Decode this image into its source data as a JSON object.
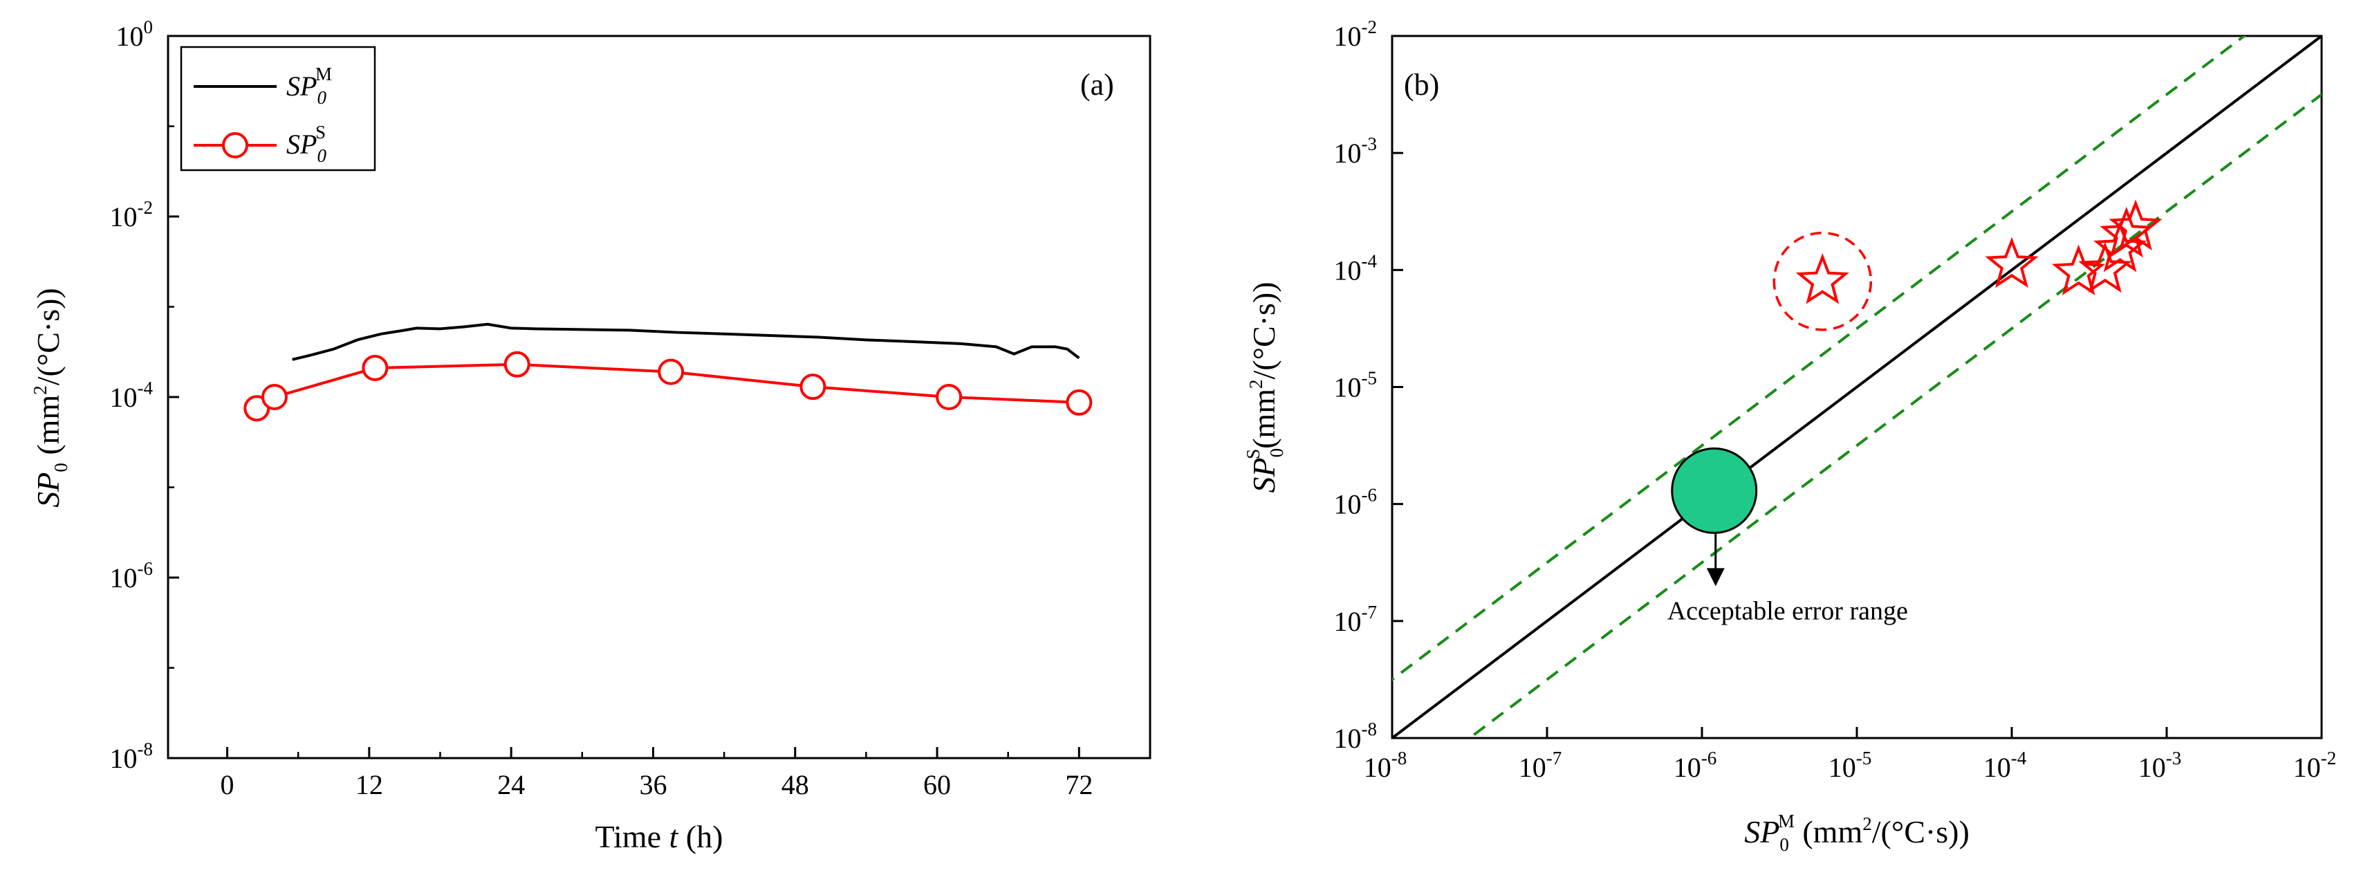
{
  "chart_data": [
    {
      "id": "a",
      "type": "line",
      "panel_label": "(a)",
      "x_ticks": [
        0,
        12,
        24,
        36,
        48,
        60,
        72
      ],
      "xlim": [
        -5,
        78
      ],
      "y_ticks": [
        {
          "base": "10",
          "exp": "-8",
          "value": 1e-08
        },
        {
          "base": "10",
          "exp": "-6",
          "value": 1e-06
        },
        {
          "base": "10",
          "exp": "-4",
          "value": 0.0001
        },
        {
          "base": "10",
          "exp": "-2",
          "value": 0.01
        },
        {
          "base": "10",
          "exp": "0",
          "value": 1
        }
      ],
      "ylim": [
        1e-08,
        1
      ],
      "yscale": "log",
      "xlabel": {
        "prefix": "Time ",
        "var": "t",
        "suffix": " (h)"
      },
      "ylabel": {
        "var": "SP",
        "sub": "0",
        "unit_a": " (mm",
        "unit_sup": "2",
        "unit_b": "/(°C·s))"
      },
      "legend": [
        {
          "sym": "SP",
          "sub": "0",
          "sup": "M",
          "style": "line"
        },
        {
          "sym": "SP",
          "sub": "0",
          "sup": "S",
          "style": "line-circle"
        }
      ],
      "series": [
        {
          "name": "SP0 M",
          "color": "#000000",
          "x": [
            5.5,
            7,
            9,
            11,
            13,
            15,
            16,
            18,
            20,
            22,
            24,
            26,
            30,
            34,
            38,
            42,
            46,
            50,
            54,
            58,
            62,
            65,
            66.5,
            68,
            70,
            71,
            72
          ],
          "y": [
            0.00026,
            0.00029,
            0.00034,
            0.00043,
            0.0005,
            0.00055,
            0.00058,
            0.00057,
            0.0006,
            0.00064,
            0.00058,
            0.00057,
            0.00056,
            0.00055,
            0.00052,
            0.0005,
            0.00048,
            0.00046,
            0.00043,
            0.00041,
            0.00039,
            0.00036,
            0.0003,
            0.00036,
            0.00036,
            0.00034,
            0.00027
          ]
        },
        {
          "name": "SP0 S",
          "color": "#ff0000",
          "marker": "circle",
          "x": [
            2.5,
            4.0,
            12.5,
            24.5,
            37.5,
            49.5,
            61.0,
            72.0
          ],
          "y": [
            7.5e-05,
            0.0001,
            0.00021,
            0.00023,
            0.00019,
            0.00013,
            0.0001,
            8.7e-05
          ]
        }
      ]
    },
    {
      "id": "b",
      "type": "scatter",
      "panel_label": "(b)",
      "xscale": "log",
      "yscale": "log",
      "xlim": [
        1e-08,
        0.01
      ],
      "ylim": [
        1e-08,
        0.01
      ],
      "x_ticks": [
        {
          "base": "10",
          "exp": "-8",
          "value": 1e-08
        },
        {
          "base": "10",
          "exp": "-7",
          "value": 1e-07
        },
        {
          "base": "10",
          "exp": "-6",
          "value": 1e-06
        },
        {
          "base": "10",
          "exp": "-5",
          "value": 1e-05
        },
        {
          "base": "10",
          "exp": "-4",
          "value": 0.0001
        },
        {
          "base": "10",
          "exp": "-3",
          "value": 0.001
        },
        {
          "base": "10",
          "exp": "-2",
          "value": 0.01
        }
      ],
      "y_ticks": [
        {
          "base": "10",
          "exp": "-8",
          "value": 1e-08
        },
        {
          "base": "10",
          "exp": "-7",
          "value": 1e-07
        },
        {
          "base": "10",
          "exp": "-6",
          "value": 1e-06
        },
        {
          "base": "10",
          "exp": "-5",
          "value": 1e-05
        },
        {
          "base": "10",
          "exp": "-4",
          "value": 0.0001
        },
        {
          "base": "10",
          "exp": "-3",
          "value": 0.001
        },
        {
          "base": "10",
          "exp": "-2",
          "value": 0.01
        }
      ],
      "xlabel": {
        "var": "SP",
        "sub": "0",
        "sup": "M",
        "unit_a": " (mm",
        "unit_sup": "2",
        "unit_b": "/(°C·s))"
      },
      "ylabel": {
        "var": "SP",
        "sub": "0",
        "sup": "S",
        "unit_a": "(mm",
        "unit_sup": "2",
        "unit_b": "/(°C·s))"
      },
      "reference_lines": [
        {
          "name": "1:1 line",
          "factor": 1,
          "color": "#000000",
          "dash": false
        },
        {
          "name": "upper error bound",
          "factor": 3.16,
          "color": "#1a8c1a",
          "dash": true
        },
        {
          "name": "lower error bound",
          "factor": 0.316,
          "color": "#1a8c1a",
          "dash": true
        }
      ],
      "points": [
        {
          "x": 6e-06,
          "y": 8e-05,
          "outlier": true
        },
        {
          "x": 0.0001,
          "y": 0.00011
        },
        {
          "x": 0.00027,
          "y": 9.5e-05
        },
        {
          "x": 0.0004,
          "y": 0.0001
        },
        {
          "x": 0.0005,
          "y": 0.00015
        },
        {
          "x": 0.00055,
          "y": 0.0002
        },
        {
          "x": 0.00063,
          "y": 0.00023
        }
      ],
      "point_color": "#ff0000",
      "marker_example": {
        "x": 1.2e-06,
        "y": 1.3e-06,
        "color": "#1fc98a"
      },
      "annotation": {
        "text": "Acceptable error range"
      }
    }
  ]
}
